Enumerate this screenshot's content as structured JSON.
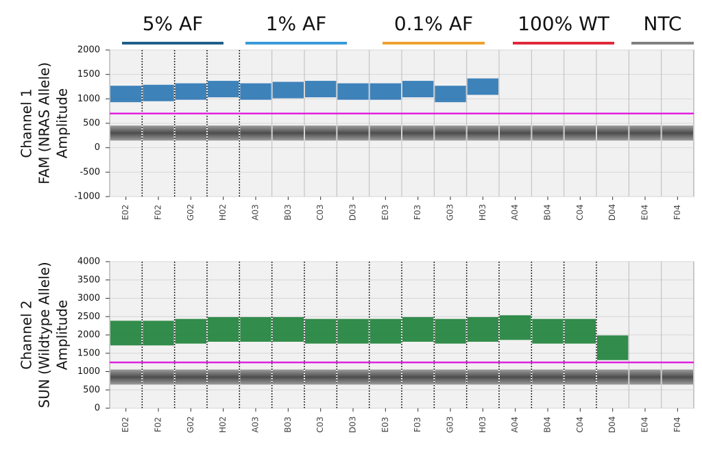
{
  "groups": [
    {
      "label": "5% AF",
      "color": "#1f5f8b"
    },
    {
      "label": "1% AF",
      "color": "#3a9ad9"
    },
    {
      "label": "0.1% AF",
      "color": "#f0a030"
    },
    {
      "label": "100% WT",
      "color": "#e0283a"
    },
    {
      "label": "NTC",
      "color": "#808080"
    }
  ],
  "chart_data": [
    {
      "type": "scatter",
      "y_label": [
        "Channel 1",
        "FAM (NRAS Allele)",
        "Amplitude"
      ],
      "categories": [
        "E02",
        "F02",
        "G02",
        "H02",
        "A03",
        "B03",
        "C03",
        "D03",
        "E03",
        "F03",
        "G03",
        "H03",
        "A04",
        "B04",
        "C04",
        "D04",
        "E04",
        "F04"
      ],
      "series": [
        {
          "color": "#1f6fb0",
          "values": [
            1100,
            1120,
            1150,
            1200,
            1150,
            1180,
            1200,
            1150,
            1150,
            1200,
            1100,
            1250,
            null,
            null,
            null,
            null,
            null,
            null
          ]
        },
        {
          "color": "#555555",
          "values": [
            300,
            300,
            300,
            300,
            300,
            300,
            300,
            300,
            300,
            300,
            300,
            300,
            300,
            300,
            300,
            300,
            300,
            300
          ]
        }
      ],
      "threshold": 700,
      "threshold_color": "#e020e0",
      "ylim": [
        -1000,
        2000
      ],
      "yticks": [
        -1000,
        -500,
        0,
        500,
        1000,
        1500,
        2000
      ],
      "grid": true
    },
    {
      "type": "scatter",
      "y_label": [
        "Channel 2",
        "SUN (Wildtype Allele)",
        "Amplitude"
      ],
      "categories": [
        "E02",
        "F02",
        "G02",
        "H02",
        "A03",
        "B03",
        "C03",
        "D03",
        "E03",
        "F03",
        "G03",
        "H03",
        "A04",
        "B04",
        "C04",
        "D04",
        "E04",
        "F04"
      ],
      "series": [
        {
          "color": "#117a2e",
          "values": [
            2050,
            2050,
            2100,
            2150,
            2150,
            2150,
            2100,
            2100,
            2100,
            2150,
            2100,
            2150,
            2200,
            2100,
            2100,
            1650,
            null,
            null
          ]
        },
        {
          "color": "#555555",
          "values": [
            850,
            850,
            850,
            850,
            850,
            850,
            850,
            850,
            850,
            850,
            850,
            850,
            850,
            850,
            850,
            850,
            850,
            850
          ]
        }
      ],
      "threshold": 1250,
      "threshold_color": "#e020e0",
      "ylim": [
        0,
        4000
      ],
      "yticks": [
        0,
        500,
        1000,
        1500,
        2000,
        2500,
        3000,
        3500,
        4000
      ],
      "grid": true
    }
  ]
}
